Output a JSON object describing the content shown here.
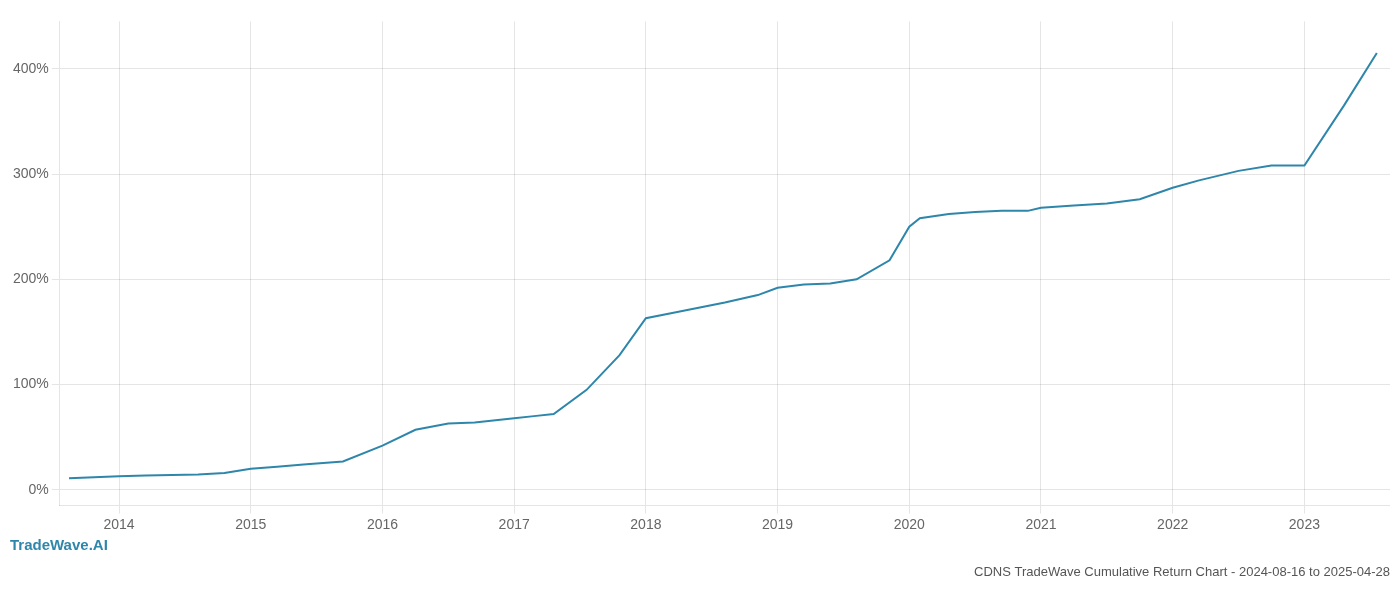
{
  "chart_data": {
    "type": "line",
    "title": "CDNS TradeWave Cumulative Return Chart - 2024-08-16 to 2025-04-28",
    "annotations": [
      "TradeWave.AI"
    ],
    "x": [
      2013.62,
      2014.0,
      2014.2,
      2014.4,
      2014.6,
      2014.8,
      2015.0,
      2015.2,
      2015.4,
      2015.7,
      2016.0,
      2016.25,
      2016.5,
      2016.7,
      2017.0,
      2017.15,
      2017.3,
      2017.55,
      2017.8,
      2018.0,
      2018.2,
      2018.4,
      2018.6,
      2018.85,
      2019.0,
      2019.2,
      2019.4,
      2019.6,
      2019.85,
      2020.0,
      2020.08,
      2020.3,
      2020.5,
      2020.7,
      2020.9,
      2021.0,
      2021.25,
      2021.5,
      2021.75,
      2022.0,
      2022.2,
      2022.5,
      2022.75,
      2023.0,
      2023.3,
      2023.55
    ],
    "values": [
      11,
      13,
      13.5,
      14,
      14.5,
      16,
      20,
      22,
      24,
      27,
      42,
      57,
      63,
      64,
      68,
      70,
      72,
      95,
      128,
      163,
      168,
      173,
      178,
      185,
      192,
      195,
      196,
      200,
      218,
      250,
      258,
      262,
      264,
      265,
      265,
      268,
      270,
      272,
      276,
      287,
      294,
      303,
      308,
      308,
      365,
      415
    ],
    "color": "#2e86ab",
    "xlim": [
      2013.55,
      2023.65
    ],
    "ylim": [
      -15,
      445
    ],
    "xticks": [
      2014,
      2015,
      2016,
      2017,
      2018,
      2019,
      2020,
      2021,
      2022,
      2023
    ],
    "yticks": [
      {
        "value": 0,
        "label": "0%"
      },
      {
        "value": 100,
        "label": "100%"
      },
      {
        "value": 200,
        "label": "200%"
      },
      {
        "value": 300,
        "label": "300%"
      },
      {
        "value": 400,
        "label": "400%"
      }
    ],
    "grid": true
  }
}
